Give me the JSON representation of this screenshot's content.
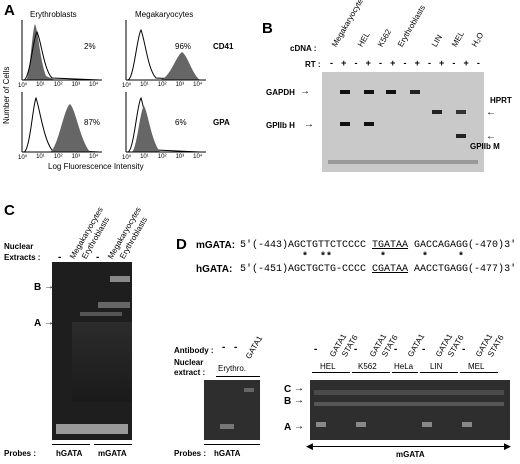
{
  "panelA": {
    "letter": "A",
    "col1": "Erythroblasts",
    "col2": "Megakaryocytes",
    "row1_marker": "CD41",
    "row2_marker": "GPA",
    "pct": [
      "2%",
      "96%",
      "87%",
      "6%"
    ],
    "ylabel": "Number of Cells",
    "xlabel": "Log Fluorescence Intensity",
    "ticks": [
      "10⁰",
      "10¹",
      "10²",
      "10³",
      "10⁴"
    ]
  },
  "panelB": {
    "letter": "B",
    "cdna_label": "cDNA :",
    "rt_label": "RT :",
    "lanes": [
      "Megakaryocytes",
      "HEL",
      "K562",
      "Erythroblasts",
      "LIN",
      "MEL",
      "H₂O"
    ],
    "rt_signs": [
      "-",
      "+",
      "-",
      "+",
      "-",
      "+",
      "-",
      "+",
      "-",
      "+",
      "-",
      "+",
      "-"
    ],
    "left_labels": [
      "GAPDH",
      "GPIIb H"
    ],
    "right_labels": [
      "HPRT",
      "GPIIb M"
    ]
  },
  "panelC": {
    "letter": "C",
    "nuclear_label": "Nuclear",
    "extracts_label": "Extracts :",
    "dash": "-",
    "lanes": [
      "Megakaryocytes",
      "Erythroblasts",
      "Megakaryocytes",
      "Erythroblasts"
    ],
    "band_labels": [
      "B",
      "A"
    ],
    "probes_label": "Probes :",
    "probes": [
      "hGATA",
      "mGATA"
    ]
  },
  "panelD": {
    "letter": "D",
    "mgata_name": "mGATA:",
    "mgata_seq_a": "5′(-443)AGCTGTTCTCCCC ",
    "mgata_seq_u": "TGATAA",
    "mgata_seq_b": " GACCAGAGG(-470)3′",
    "stars": "*  **        *      *     *",
    "hgata_name": "hGATA:",
    "hgata_seq_a": "5′(-451)AGCTGCTG-CCCC ",
    "hgata_seq_u": "CGATAA",
    "hgata_seq_b": " AACCTGAGG(-477)3′",
    "antibody_label": "Antibody :",
    "nuclear_label": "Nuclear",
    "extract_label": "extract :",
    "erythro": "Erythro.",
    "cells": [
      "HEL",
      "K562",
      "HeLa",
      "LIN",
      "MEL"
    ],
    "gata1": "GATA1",
    "stat6": "STAT6",
    "dash": "-",
    "band_labels": [
      "C",
      "B",
      "A"
    ],
    "probes_label": "Probes :",
    "probes": [
      "hGATA",
      "mGATA"
    ]
  }
}
